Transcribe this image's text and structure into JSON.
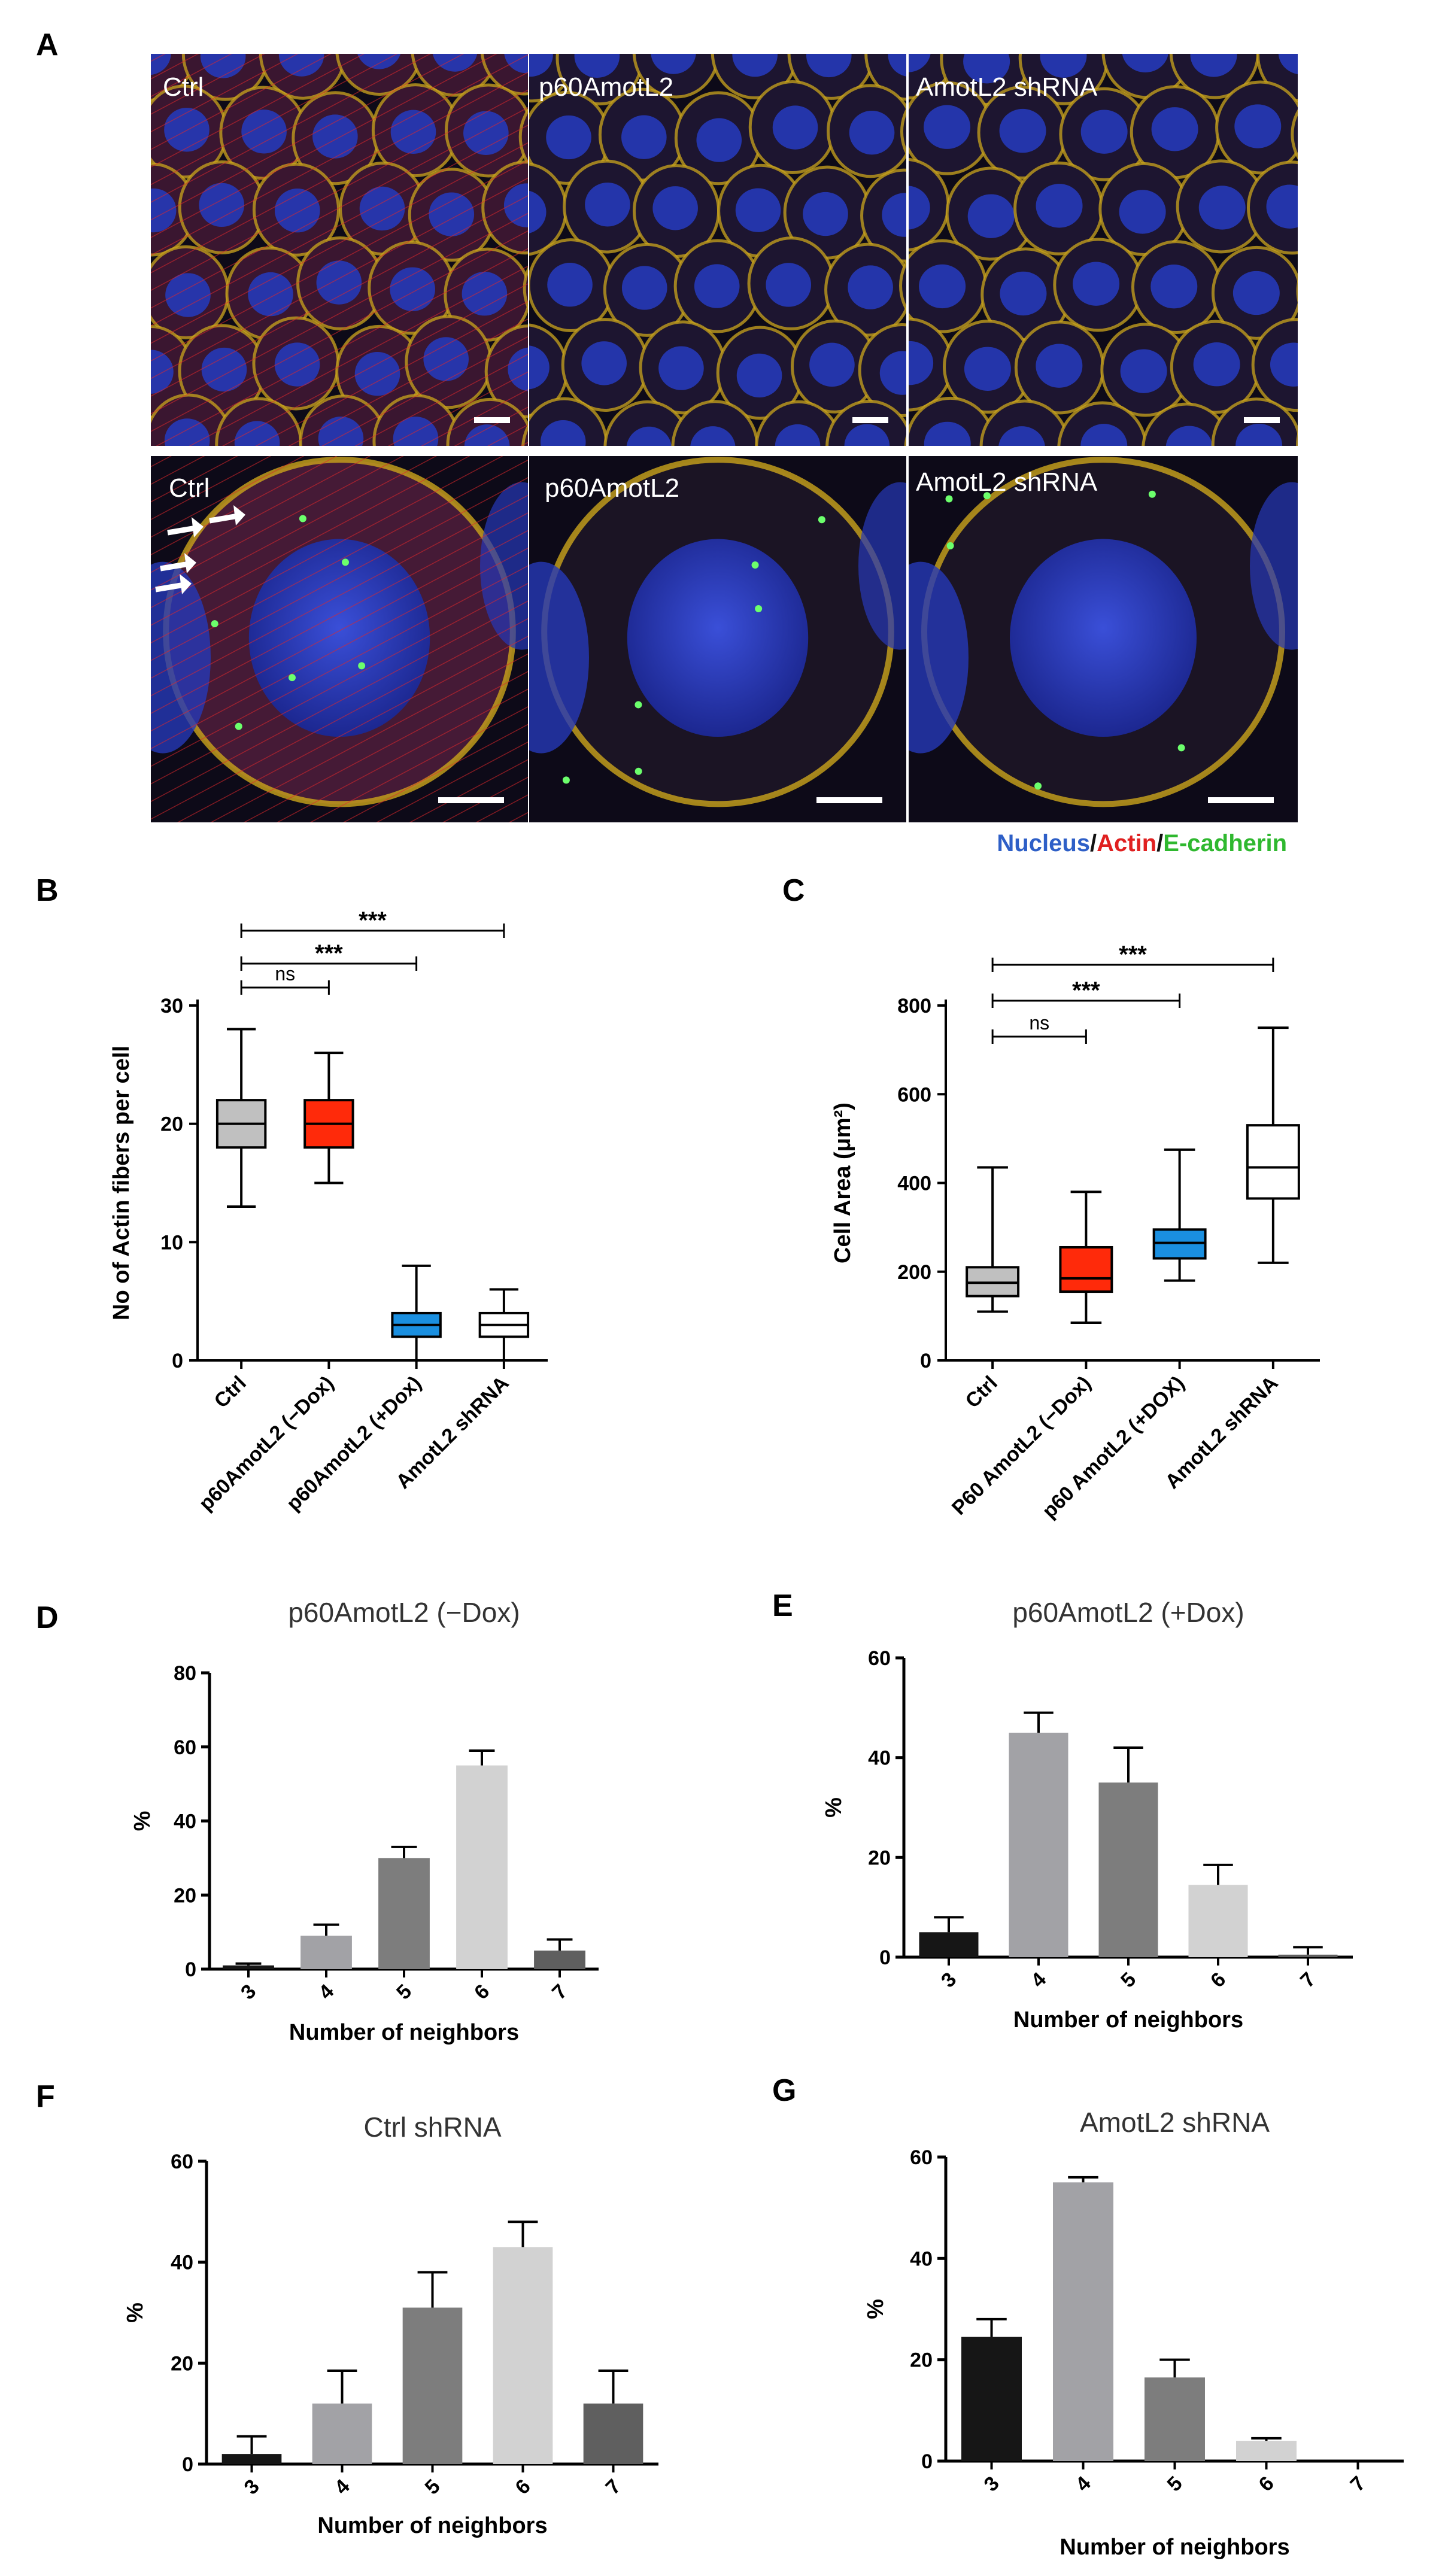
{
  "panel_letters": [
    "A",
    "B",
    "C",
    "D",
    "E",
    "F",
    "G"
  ],
  "panel_a": {
    "top_labels": [
      "Ctrl",
      "p60AmotL2",
      "AmotL2 shRNA"
    ],
    "bottom_labels": [
      "Ctrl",
      "p60AmotL2",
      "AmotL2 shRNA"
    ],
    "legend": [
      {
        "text": "Nucleus",
        "color": "#2e5fc7"
      },
      {
        "text": "/",
        "color": "#111111"
      },
      {
        "text": "Actin",
        "color": "#e02020"
      },
      {
        "text": "/",
        "color": "#111111"
      },
      {
        "text": "E-cadherin",
        "color": "#2fb82f"
      }
    ],
    "colors": {
      "nucleus": "#2638b8",
      "actin": "#d62a2a",
      "cadherin": "#caa41c",
      "background": "#0d0a18"
    }
  },
  "chart_data": [
    {
      "panel": "B",
      "type": "box",
      "ylabel": "No of  Actin fibers per cell",
      "ylim": [
        0,
        30
      ],
      "yticks": [
        0,
        10,
        20,
        30
      ],
      "categories": [
        "Ctrl",
        "p60AmotL2 (−Dox)",
        "p60AmotL2 (+Dox)",
        "AmotL2 shRNA"
      ],
      "boxes": [
        {
          "min": 13,
          "q1": 18,
          "median": 20,
          "q3": 22,
          "max": 28,
          "color": "#c0c0c0"
        },
        {
          "min": 15,
          "q1": 18,
          "median": 20,
          "q3": 22,
          "max": 26,
          "color": "#ff2a0a"
        },
        {
          "min": 0,
          "q1": 2,
          "median": 3,
          "q3": 4,
          "max": 8,
          "color": "#1a8fe0"
        },
        {
          "min": 0,
          "q1": 2,
          "median": 3,
          "q3": 4,
          "max": 6,
          "color": "#ffffff"
        }
      ],
      "comparisons": [
        {
          "from": 0,
          "to": 1,
          "label": "ns"
        },
        {
          "from": 0,
          "to": 2,
          "label": "***"
        },
        {
          "from": 0,
          "to": 3,
          "label": "***"
        }
      ]
    },
    {
      "panel": "C",
      "type": "box",
      "ylabel": "Cell Area (μm²)",
      "ylim": [
        0,
        800
      ],
      "yticks": [
        0,
        200,
        400,
        600,
        800
      ],
      "categories": [
        "Ctrl",
        "P60 AmotL2 (−Dox)",
        "p60 AmotL2 (+DOX)",
        "AmotL2 shRNA"
      ],
      "boxes": [
        {
          "min": 110,
          "q1": 145,
          "median": 175,
          "q3": 210,
          "max": 435,
          "color": "#c0c0c0"
        },
        {
          "min": 85,
          "q1": 155,
          "median": 185,
          "q3": 255,
          "max": 380,
          "color": "#ff2a0a"
        },
        {
          "min": 180,
          "q1": 230,
          "median": 265,
          "q3": 295,
          "max": 475,
          "color": "#1a8fe0"
        },
        {
          "min": 220,
          "q1": 365,
          "median": 435,
          "q3": 530,
          "max": 750,
          "color": "#ffffff"
        }
      ],
      "comparisons": [
        {
          "from": 0,
          "to": 1,
          "label": "ns"
        },
        {
          "from": 0,
          "to": 2,
          "label": "***"
        },
        {
          "from": 0,
          "to": 3,
          "label": "***"
        }
      ]
    },
    {
      "panel": "D",
      "type": "bar",
      "title": "p60AmotL2 (−Dox)",
      "xlabel": "Number of neighbors",
      "ylabel": "%",
      "ylim": [
        0,
        80
      ],
      "yticks": [
        0,
        20,
        40,
        60,
        80
      ],
      "categories": [
        "3",
        "4",
        "5",
        "6",
        "7"
      ],
      "values": [
        1,
        9,
        30,
        55,
        5
      ],
      "errors": [
        0.5,
        3,
        3,
        4,
        3
      ],
      "colors": [
        "#161616",
        "#a2a2a6",
        "#7d7d7d",
        "#d2d2d2",
        "#5f5f5f"
      ]
    },
    {
      "panel": "E",
      "type": "bar",
      "title": "p60AmotL2 (+Dox)",
      "xlabel": "Number of neighbors",
      "ylabel": "%",
      "ylim": [
        0,
        60
      ],
      "yticks": [
        0,
        20,
        40,
        60
      ],
      "categories": [
        "3",
        "4",
        "5",
        "6",
        "7"
      ],
      "values": [
        5,
        45,
        35,
        14.5,
        0.5
      ],
      "errors": [
        3,
        4,
        7,
        4,
        1.5
      ],
      "colors": [
        "#161616",
        "#a2a2a6",
        "#7d7d7d",
        "#d2d2d2",
        "#5f5f5f"
      ]
    },
    {
      "panel": "F",
      "type": "bar",
      "title": "Ctrl shRNA",
      "xlabel": "Number of neighbors",
      "ylabel": "%",
      "ylim": [
        0,
        60
      ],
      "yticks": [
        0,
        20,
        40,
        60
      ],
      "categories": [
        "3",
        "4",
        "5",
        "6",
        "7"
      ],
      "values": [
        2,
        12,
        31,
        43,
        12
      ],
      "errors": [
        3.5,
        6.5,
        7,
        5,
        6.5
      ],
      "colors": [
        "#161616",
        "#a2a2a6",
        "#7d7d7d",
        "#d2d2d2",
        "#5f5f5f"
      ]
    },
    {
      "panel": "G",
      "type": "bar",
      "title": "AmotL2 shRNA",
      "xlabel": "Number of neighbors",
      "ylabel": "%",
      "ylim": [
        0,
        60
      ],
      "yticks": [
        0,
        20,
        40,
        60
      ],
      "categories": [
        "3",
        "4",
        "5",
        "6",
        "7"
      ],
      "values": [
        24.5,
        55,
        16.5,
        4,
        0
      ],
      "errors": [
        3.5,
        1,
        3.5,
        0.5,
        0
      ],
      "colors": [
        "#161616",
        "#a2a2a6",
        "#7d7d7d",
        "#d2d2d2",
        "#5f5f5f"
      ]
    }
  ]
}
